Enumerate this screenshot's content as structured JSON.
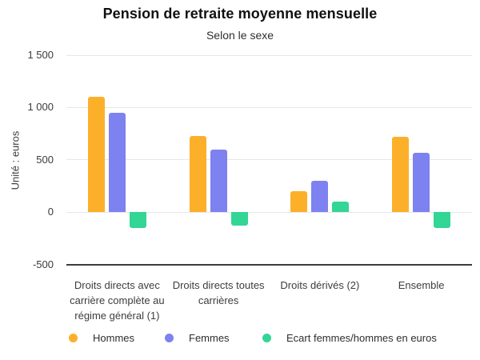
{
  "chart_data": {
    "type": "bar",
    "title": "Pension de retraite moyenne mensuelle",
    "subtitle": "Selon le sexe",
    "ylabel": "Unité : euros",
    "xlabel": "",
    "categories": [
      "Droits directs avec carrière complète au régime général (1)",
      "Droits directs toutes carrières",
      "Droits dérivés (2)",
      "Ensemble"
    ],
    "series": [
      {
        "name": "Hommes",
        "color": "#fcb02a",
        "values": [
          1100,
          730,
          200,
          720
        ]
      },
      {
        "name": "Femmes",
        "color": "#7d82f0",
        "values": [
          950,
          600,
          300,
          570
        ]
      },
      {
        "name": "Ecart femmes/hommes en euros",
        "color": "#33d694",
        "values": [
          -150,
          -130,
          100,
          -150
        ]
      }
    ],
    "ylim": [
      -500,
      1500
    ],
    "yticks": [
      {
        "value": 1500,
        "label": "1 500"
      },
      {
        "value": 1000,
        "label": "1 000"
      },
      {
        "value": 500,
        "label": "500"
      },
      {
        "value": 0,
        "label": "0"
      },
      {
        "value": -500,
        "label": "-500"
      }
    ],
    "grid": true,
    "legend_position": "bottom"
  }
}
